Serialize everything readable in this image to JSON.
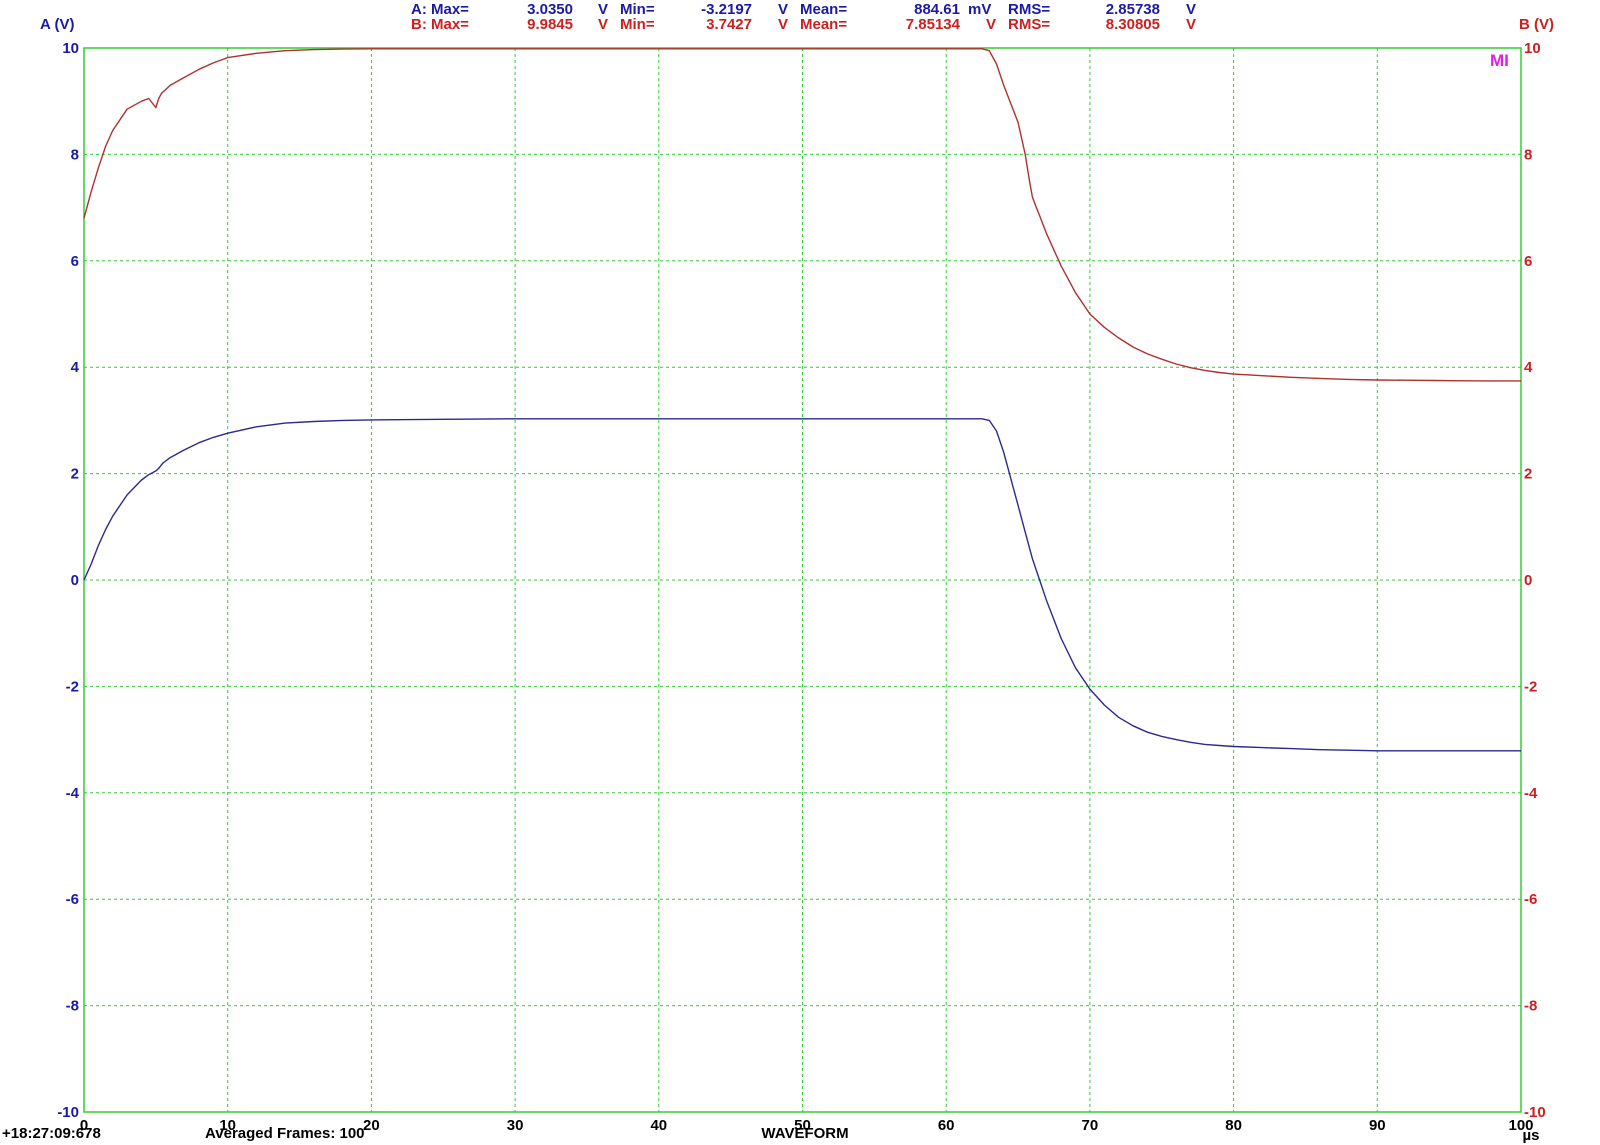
{
  "colors": {
    "channel_a": "#1a1aa6",
    "channel_b": "#cc1f1f",
    "trace_a": "#2a2a8f",
    "trace_b": "#b03030",
    "grid": "#33cc33",
    "marker": "#e020e0",
    "text": "#000000"
  },
  "measurements": {
    "a": {
      "label": "A: Max=",
      "max": "3.0350",
      "max_unit": "V",
      "min_label": "Min=",
      "min": "-3.2197",
      "min_unit": "V",
      "mean_label": "Mean=",
      "mean": "884.61",
      "mean_unit": "mV",
      "rms_label": "RMS=",
      "rms": "2.85738",
      "rms_unit": "V"
    },
    "b": {
      "label": "B: Max=",
      "max": "9.9845",
      "max_unit": "V",
      "min_label": "Min=",
      "min": "3.7427",
      "min_unit": "V",
      "mean_label": "Mean=",
      "mean": "7.85134",
      "mean_unit": "V",
      "rms_label": "RMS=",
      "rms": "8.30805",
      "rms_unit": "V"
    }
  },
  "marker_label": "MI",
  "footer": {
    "timestamp": "+18:27:09:678",
    "averaged": "Averaged Frames: 100",
    "mode": "WAVEFORM",
    "x_unit": "µs"
  },
  "chart_data": {
    "type": "line",
    "title": "",
    "xlabel": "",
    "ylabel_left": "A (V)",
    "ylabel_right": "B (V)",
    "xlim": [
      0,
      100
    ],
    "ylim": [
      -10,
      10
    ],
    "grid": true,
    "x_ticks": [
      0,
      10,
      20,
      30,
      40,
      50,
      60,
      70,
      80,
      90,
      100
    ],
    "y_ticks": [
      -10,
      -8,
      -6,
      -4,
      -2,
      0,
      2,
      4,
      6,
      8,
      10
    ],
    "series": [
      {
        "name": "A",
        "axis": "left",
        "x": [
          0,
          0.5,
          1,
          1.5,
          2,
          3,
          4,
          4.5,
          5,
          5.2,
          5.5,
          6,
          7,
          8,
          9,
          10,
          12,
          14,
          16,
          18,
          20,
          25,
          30,
          35,
          40,
          45,
          50,
          55,
          60,
          62,
          62.5,
          63,
          63.5,
          64,
          64.5,
          65,
          65.5,
          66,
          66.5,
          67,
          68,
          69,
          70,
          71,
          72,
          73,
          74,
          75,
          76,
          77,
          78,
          79,
          80,
          82,
          84,
          86,
          88,
          90,
          92,
          94,
          96,
          98,
          100
        ],
        "y": [
          0.0,
          0.3,
          0.65,
          0.95,
          1.2,
          1.6,
          1.88,
          1.98,
          2.05,
          2.1,
          2.2,
          2.3,
          2.45,
          2.58,
          2.68,
          2.76,
          2.88,
          2.95,
          2.98,
          3.0,
          3.01,
          3.02,
          3.03,
          3.03,
          3.03,
          3.03,
          3.03,
          3.03,
          3.03,
          3.03,
          3.03,
          3.0,
          2.8,
          2.4,
          1.9,
          1.4,
          0.9,
          0.4,
          0.0,
          -0.4,
          -1.1,
          -1.65,
          -2.05,
          -2.35,
          -2.58,
          -2.74,
          -2.86,
          -2.94,
          -3.0,
          -3.05,
          -3.09,
          -3.11,
          -3.13,
          -3.15,
          -3.17,
          -3.19,
          -3.2,
          -3.21,
          -3.21,
          -3.21,
          -3.21,
          -3.21,
          -3.21
        ]
      },
      {
        "name": "B",
        "axis": "right",
        "x": [
          0,
          0.5,
          1,
          1.5,
          2,
          3,
          4,
          4.5,
          5,
          5.2,
          5.4,
          5.6,
          6,
          7,
          8,
          9,
          10,
          12,
          14,
          16,
          18,
          20,
          25,
          30,
          35,
          40,
          45,
          50,
          55,
          60,
          62,
          62.5,
          63,
          63.5,
          64,
          64.5,
          65,
          65.5,
          65.8,
          66,
          66.2,
          66.5,
          67,
          68,
          69,
          70,
          71,
          72,
          73,
          74,
          75,
          76,
          77,
          78,
          79,
          80,
          82,
          84,
          86,
          88,
          90,
          92,
          94,
          96,
          98,
          100
        ],
        "y": [
          6.8,
          7.3,
          7.75,
          8.15,
          8.45,
          8.85,
          9.0,
          9.05,
          8.88,
          9.05,
          9.15,
          9.2,
          9.3,
          9.45,
          9.6,
          9.72,
          9.82,
          9.9,
          9.95,
          9.97,
          9.98,
          9.985,
          9.985,
          9.985,
          9.985,
          9.985,
          9.985,
          9.985,
          9.985,
          9.985,
          9.985,
          9.985,
          9.95,
          9.7,
          9.3,
          8.95,
          8.6,
          8.0,
          7.5,
          7.2,
          7.05,
          6.85,
          6.5,
          5.9,
          5.4,
          5.0,
          4.75,
          4.55,
          4.38,
          4.25,
          4.15,
          4.06,
          3.99,
          3.94,
          3.9,
          3.87,
          3.84,
          3.81,
          3.79,
          3.77,
          3.76,
          3.755,
          3.75,
          3.745,
          3.743,
          3.743
        ]
      }
    ]
  }
}
